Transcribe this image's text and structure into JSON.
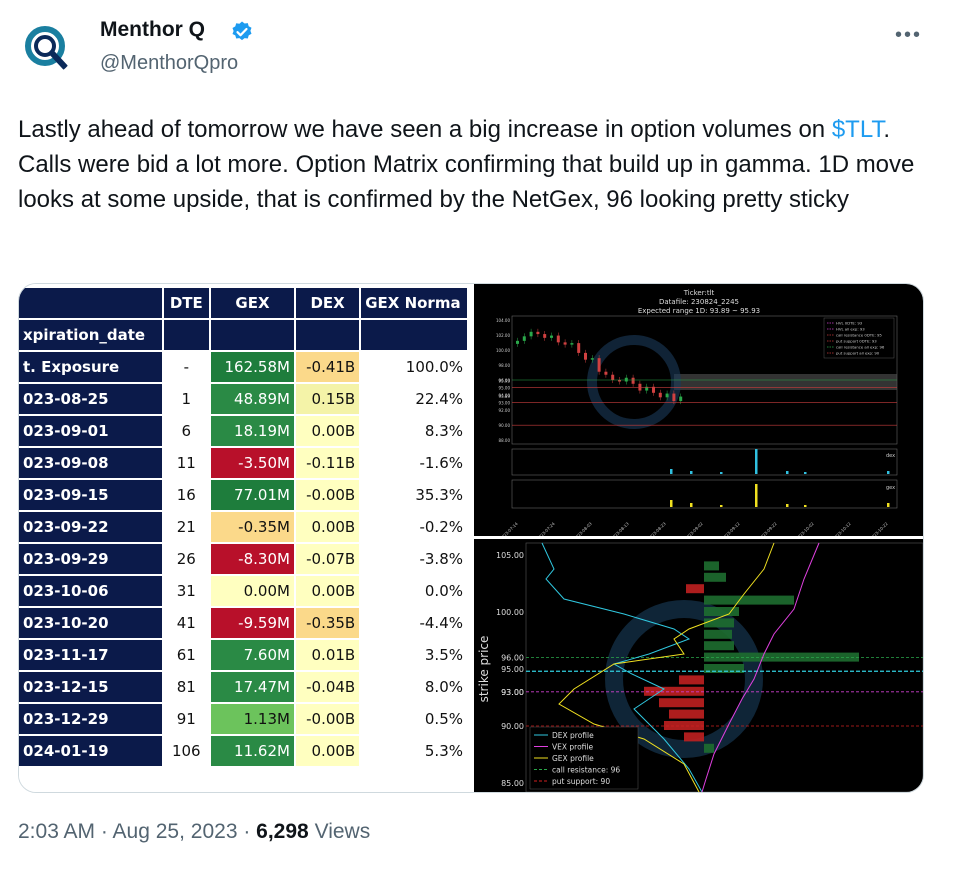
{
  "author": {
    "name": "Menthor Q",
    "handle": "@MenthorQpro"
  },
  "tweet": {
    "text_before": "Lastly ahead of tomorrow we have seen a big increase in option volumes on ",
    "cashtag": "$TLT",
    "text_after": ". Calls were bid a lot more. Option Matrix confirming that build up in gamma. 1D move looks at some upside, that is confirmed by the NetGex, 96 looking pretty sticky"
  },
  "table": {
    "headers": [
      "",
      "DTE",
      "GEX",
      "DEX",
      "GEX Norma"
    ],
    "subheader": "xpiration_date",
    "rows": [
      {
        "label": "t. Exposure",
        "dte": "-",
        "gex": "162.58M",
        "dex": "-0.41B",
        "norm": "100.0%",
        "gex_color": "#1e7d3c",
        "dex_color": "#fbd98a"
      },
      {
        "label": "023-08-25",
        "dte": "1",
        "gex": "48.89M",
        "dex": "0.15B",
        "norm": "22.4%",
        "gex_color": "#2a8a45",
        "dex_color": "#f4f3a8"
      },
      {
        "label": "023-09-01",
        "dte": "6",
        "gex": "18.19M",
        "dex": "0.00B",
        "norm": "8.3%",
        "gex_color": "#2a8a45",
        "dex_color": "#ffffc0"
      },
      {
        "label": "023-09-08",
        "dte": "11",
        "gex": "-3.50M",
        "dex": "-0.11B",
        "norm": "-1.6%",
        "gex_color": "#b8102a",
        "dex_color": "#ffffc0"
      },
      {
        "label": "023-09-15",
        "dte": "16",
        "gex": "77.01M",
        "dex": "-0.00B",
        "norm": "35.3%",
        "gex_color": "#1e7d3c",
        "dex_color": "#ffffc0"
      },
      {
        "label": "023-09-22",
        "dte": "21",
        "gex": "-0.35M",
        "dex": "0.00B",
        "norm": "-0.2%",
        "gex_color": "#fbd98a",
        "dex_color": "#ffffc0"
      },
      {
        "label": "023-09-29",
        "dte": "26",
        "gex": "-8.30M",
        "dex": "-0.07B",
        "norm": "-3.8%",
        "gex_color": "#b8102a",
        "dex_color": "#ffffc0"
      },
      {
        "label": "023-10-06",
        "dte": "31",
        "gex": "0.00M",
        "dex": "0.00B",
        "norm": "0.0%",
        "gex_color": "#ffffc0",
        "dex_color": "#ffffc0"
      },
      {
        "label": "023-10-20",
        "dte": "41",
        "gex": "-9.59M",
        "dex": "-0.35B",
        "norm": "-4.4%",
        "gex_color": "#b8102a",
        "dex_color": "#fbd98a"
      },
      {
        "label": "023-11-17",
        "dte": "61",
        "gex": "7.60M",
        "dex": "0.01B",
        "norm": "3.5%",
        "gex_color": "#2a8a45",
        "dex_color": "#ffffc0"
      },
      {
        "label": "023-12-15",
        "dte": "81",
        "gex": "17.47M",
        "dex": "-0.04B",
        "norm": "8.0%",
        "gex_color": "#2a8a45",
        "dex_color": "#ffffc0"
      },
      {
        "label": "023-12-29",
        "dte": "91",
        "gex": "1.13M",
        "dex": "-0.00B",
        "norm": "0.5%",
        "gex_color": "#6cc35c",
        "dex_color": "#ffffc0"
      },
      {
        "label": "024-01-19",
        "dte": "106",
        "gex": "11.62M",
        "dex": "0.00B",
        "norm": "5.3%",
        "gex_color": "#2a8a45",
        "dex_color": "#ffffc0"
      }
    ]
  },
  "chart_top": {
    "title_lines": [
      "Ticker:tlt",
      "Datafile: 230824_2245",
      "Expected range 1D: 93.89 ~ 95.93"
    ],
    "legend": [
      "HVL 0DTE: 93",
      "HVL all exp: 93",
      "call resistance 0DTE: 95",
      "put support 0DTE: 93",
      "call resistance all exp: 96",
      "put support all exp: 90"
    ],
    "y_ticks": [
      "104.00",
      "102.00",
      "100.00",
      "98.00",
      "96.00",
      "95.93",
      "95.00",
      "94.00",
      "93.89",
      "93.00",
      "92.00",
      "90.00",
      "88.00"
    ],
    "dex_label": "dex",
    "gex_label": "gex",
    "x_ticks": [
      "2023-07-14",
      "2023-07-24",
      "2023-08-03",
      "2023-08-13",
      "2023-08-23",
      "2023-09-02",
      "2023-09-12",
      "2023-09-22",
      "2023-10-02",
      "2023-10-12",
      "2023-10-22"
    ]
  },
  "chart_bottom": {
    "ylabel": "strike price",
    "y_ticks": [
      "105.00",
      "100.00",
      "96.00",
      "95.00",
      "93.00",
      "93.00",
      "90.00",
      "85.00"
    ],
    "legend": [
      "DEX profile",
      "VEX profile",
      "GEX profile",
      "call resistance: 96",
      "put support: 90"
    ]
  },
  "footer": {
    "time": "2:03 AM · Aug 25, 2023 · ",
    "views": "6,298",
    "views_label": " Views"
  },
  "colors": {
    "accent": "#1d9bf0",
    "verified": "#1d9bf0"
  }
}
